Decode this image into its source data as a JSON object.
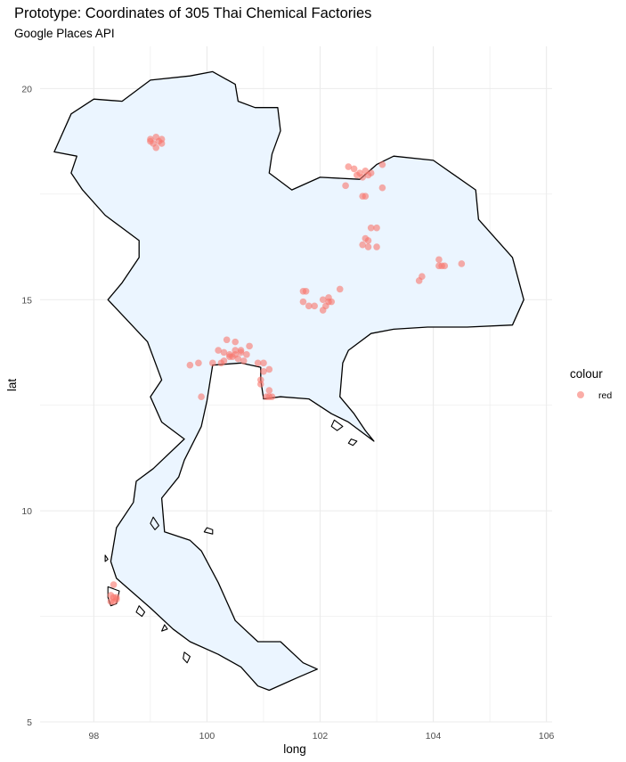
{
  "chart_data": {
    "type": "scatter",
    "title": "Prototype: Coordinates of 305 Thai Chemical Factories",
    "subtitle": "Google Places API",
    "xlabel": "long",
    "ylabel": "lat",
    "xlim": [
      97.05,
      106.1
    ],
    "ylim": [
      5.0,
      21.0
    ],
    "x_ticks": [
      98,
      100,
      102,
      104,
      106
    ],
    "y_ticks": [
      5,
      10,
      15,
      20
    ],
    "grid": true,
    "legend": {
      "title": "colour",
      "entries": [
        "red"
      ],
      "placement": "right"
    },
    "colors": {
      "point": "#F8766D",
      "land_fill": "#EBF5FF",
      "outline": "#000000",
      "grid": "#EBEBEB"
    },
    "map_outline": {
      "mainland": [
        [
          98.5,
          19.7
        ],
        [
          99.0,
          20.2
        ],
        [
          99.7,
          20.3
        ],
        [
          100.1,
          20.4
        ],
        [
          100.5,
          20.1
        ],
        [
          100.55,
          19.7
        ],
        [
          100.85,
          19.55
        ],
        [
          101.25,
          19.55
        ],
        [
          101.3,
          19.0
        ],
        [
          101.15,
          18.45
        ],
        [
          101.1,
          18.0
        ],
        [
          101.5,
          17.6
        ],
        [
          102.0,
          17.9
        ],
        [
          102.7,
          17.85
        ],
        [
          103.0,
          18.2
        ],
        [
          103.3,
          18.4
        ],
        [
          104.0,
          18.3
        ],
        [
          104.75,
          17.6
        ],
        [
          104.8,
          16.9
        ],
        [
          105.4,
          16.0
        ],
        [
          105.6,
          15.0
        ],
        [
          105.4,
          14.4
        ],
        [
          104.6,
          14.35
        ],
        [
          103.9,
          14.35
        ],
        [
          103.3,
          14.3
        ],
        [
          102.9,
          14.2
        ],
        [
          102.5,
          13.8
        ],
        [
          102.4,
          13.5
        ],
        [
          102.35,
          12.7
        ],
        [
          102.6,
          12.3
        ],
        [
          102.8,
          11.9
        ],
        [
          102.95,
          11.65
        ],
        [
          102.5,
          12.1
        ],
        [
          102.2,
          12.3
        ],
        [
          101.8,
          12.65
        ],
        [
          101.3,
          12.7
        ],
        [
          101.0,
          12.65
        ],
        [
          100.95,
          13.1
        ],
        [
          100.95,
          13.4
        ],
        [
          100.6,
          13.5
        ],
        [
          100.1,
          13.45
        ],
        [
          100.0,
          12.6
        ],
        [
          99.9,
          12.0
        ],
        [
          99.6,
          11.2
        ],
        [
          99.5,
          10.8
        ],
        [
          99.2,
          10.3
        ],
        [
          99.25,
          9.5
        ],
        [
          99.7,
          9.3
        ],
        [
          99.9,
          9.05
        ],
        [
          100.2,
          8.3
        ],
        [
          100.5,
          7.4
        ],
        [
          100.9,
          6.9
        ],
        [
          101.3,
          6.9
        ],
        [
          101.7,
          6.4
        ],
        [
          101.95,
          6.25
        ],
        [
          101.6,
          6.05
        ],
        [
          101.1,
          5.75
        ],
        [
          100.9,
          5.85
        ],
        [
          100.6,
          6.3
        ],
        [
          100.2,
          6.6
        ],
        [
          99.7,
          6.9
        ],
        [
          99.4,
          7.2
        ],
        [
          99.0,
          7.7
        ],
        [
          98.4,
          8.4
        ],
        [
          98.3,
          8.8
        ],
        [
          98.4,
          9.6
        ],
        [
          98.7,
          10.2
        ],
        [
          98.75,
          10.7
        ],
        [
          99.05,
          11.0
        ],
        [
          99.6,
          11.7
        ],
        [
          99.2,
          12.1
        ],
        [
          99.0,
          12.7
        ],
        [
          99.2,
          13.1
        ],
        [
          98.95,
          14.0
        ],
        [
          98.6,
          14.5
        ],
        [
          98.25,
          15.0
        ],
        [
          98.5,
          15.4
        ],
        [
          98.8,
          16.0
        ],
        [
          98.8,
          16.4
        ],
        [
          98.2,
          17.0
        ],
        [
          97.8,
          17.6
        ],
        [
          97.6,
          18.0
        ],
        [
          97.7,
          18.4
        ],
        [
          97.3,
          18.5
        ],
        [
          97.6,
          19.4
        ],
        [
          98.0,
          19.75
        ],
        [
          98.5,
          19.7
        ]
      ],
      "islands": [
        [
          [
            99.05,
            9.85
          ],
          [
            99.15,
            9.65
          ],
          [
            99.08,
            9.55
          ],
          [
            99.0,
            9.7
          ]
        ],
        [
          [
            100.0,
            9.6
          ],
          [
            100.1,
            9.55
          ],
          [
            100.1,
            9.45
          ],
          [
            99.95,
            9.5
          ]
        ],
        [
          [
            98.25,
            8.2
          ],
          [
            98.45,
            8.1
          ],
          [
            98.4,
            7.8
          ],
          [
            98.3,
            7.75
          ],
          [
            98.25,
            7.95
          ]
        ],
        [
          [
            98.8,
            7.75
          ],
          [
            98.9,
            7.6
          ],
          [
            98.85,
            7.5
          ],
          [
            98.75,
            7.6
          ]
        ],
        [
          [
            99.25,
            7.3
          ],
          [
            99.3,
            7.2
          ],
          [
            99.2,
            7.15
          ]
        ],
        [
          [
            102.25,
            12.15
          ],
          [
            102.4,
            12.0
          ],
          [
            102.3,
            11.9
          ],
          [
            102.2,
            12.0
          ]
        ],
        [
          [
            102.55,
            11.7
          ],
          [
            102.65,
            11.65
          ],
          [
            102.58,
            11.55
          ],
          [
            102.5,
            11.6
          ]
        ],
        [
          [
            98.2,
            8.95
          ],
          [
            98.25,
            8.85
          ],
          [
            98.2,
            8.8
          ]
        ],
        [
          [
            99.6,
            6.65
          ],
          [
            99.7,
            6.55
          ],
          [
            99.65,
            6.4
          ],
          [
            99.58,
            6.5
          ]
        ]
      ]
    },
    "points": [
      [
        99.0,
        18.8
      ],
      [
        99.1,
        18.85
      ],
      [
        99.2,
        18.8
      ],
      [
        99.05,
        18.7
      ],
      [
        99.15,
        18.75
      ],
      [
        99.1,
        18.6
      ],
      [
        99.0,
        18.75
      ],
      [
        99.2,
        18.7
      ],
      [
        102.5,
        18.15
      ],
      [
        102.6,
        18.1
      ],
      [
        102.7,
        18.0
      ],
      [
        102.8,
        18.05
      ],
      [
        102.9,
        18.0
      ],
      [
        102.75,
        17.9
      ],
      [
        102.65,
        17.95
      ],
      [
        103.1,
        18.2
      ],
      [
        102.85,
        17.95
      ],
      [
        102.45,
        17.7
      ],
      [
        103.1,
        17.65
      ],
      [
        102.8,
        17.45
      ],
      [
        102.75,
        17.45
      ],
      [
        102.9,
        16.7
      ],
      [
        103.0,
        16.7
      ],
      [
        102.8,
        16.45
      ],
      [
        102.85,
        16.4
      ],
      [
        102.75,
        16.3
      ],
      [
        102.85,
        16.25
      ],
      [
        103.0,
        16.25
      ],
      [
        104.1,
        15.95
      ],
      [
        104.15,
        15.8
      ],
      [
        104.2,
        15.8
      ],
      [
        104.1,
        15.8
      ],
      [
        104.5,
        15.85
      ],
      [
        103.8,
        15.55
      ],
      [
        103.75,
        15.45
      ],
      [
        101.7,
        15.2
      ],
      [
        101.75,
        15.2
      ],
      [
        101.7,
        14.95
      ],
      [
        102.15,
        14.95
      ],
      [
        102.05,
        15.0
      ],
      [
        101.8,
        14.85
      ],
      [
        102.05,
        14.75
      ],
      [
        102.1,
        14.85
      ],
      [
        102.2,
        14.95
      ],
      [
        102.35,
        15.25
      ],
      [
        102.15,
        15.05
      ],
      [
        101.9,
        14.85
      ],
      [
        100.2,
        13.8
      ],
      [
        100.3,
        13.75
      ],
      [
        100.4,
        13.7
      ],
      [
        100.5,
        13.8
      ],
      [
        100.6,
        13.75
      ],
      [
        100.45,
        13.65
      ],
      [
        100.55,
        13.6
      ],
      [
        100.7,
        13.7
      ],
      [
        100.35,
        14.05
      ],
      [
        100.5,
        14.0
      ],
      [
        100.75,
        13.9
      ],
      [
        100.65,
        13.55
      ],
      [
        100.3,
        13.55
      ],
      [
        100.25,
        13.5
      ],
      [
        100.1,
        13.5
      ],
      [
        99.7,
        13.45
      ],
      [
        99.85,
        13.5
      ],
      [
        100.9,
        13.5
      ],
      [
        101.0,
        13.5
      ],
      [
        101.1,
        13.35
      ],
      [
        101.0,
        13.3
      ],
      [
        100.95,
        13.1
      ],
      [
        100.95,
        13.0
      ],
      [
        101.1,
        12.85
      ],
      [
        101.1,
        12.7
      ],
      [
        101.15,
        12.7
      ],
      [
        101.05,
        12.7
      ],
      [
        99.9,
        12.7
      ],
      [
        100.5,
        13.7
      ],
      [
        100.6,
        13.8
      ],
      [
        100.4,
        13.65
      ],
      [
        98.35,
        8.25
      ],
      [
        98.3,
        8.0
      ],
      [
        98.35,
        7.95
      ],
      [
        98.4,
        7.9
      ],
      [
        98.3,
        7.85
      ],
      [
        98.35,
        7.85
      ],
      [
        98.4,
        7.95
      ]
    ]
  }
}
